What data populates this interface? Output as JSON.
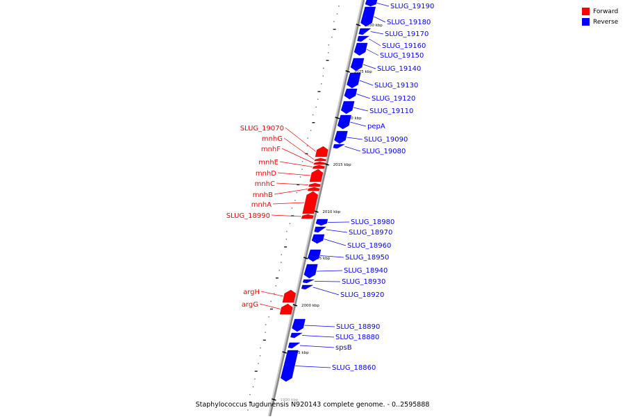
{
  "caption": "Staphylococcus lugdunensis N920143 complete genome. - 0..2595888",
  "legend": [
    {
      "label": "Forward",
      "color": "#ff0000"
    },
    {
      "label": "Reverse",
      "color": "#0000ff"
    }
  ],
  "colors": {
    "forward": "#ff0000",
    "reverse": "#0000ff",
    "backbone": "#888888"
  },
  "ticks": [
    {
      "label": "2030 kbp",
      "kbp": 2030
    },
    {
      "label": "2025 kbp",
      "kbp": 2025
    },
    {
      "label": "2020 kbp",
      "kbp": 2020
    },
    {
      "label": "2015 kbp",
      "kbp": 2015
    },
    {
      "label": "2010 kbp",
      "kbp": 2010
    },
    {
      "label": "2005 kbp",
      "kbp": 2005
    },
    {
      "label": "2000 kbp",
      "kbp": 2000
    },
    {
      "label": "1995 kbp",
      "kbp": 1995
    },
    {
      "label": "1990 kbp",
      "kbp": 1990
    }
  ],
  "forward_genes": [
    {
      "label": "SLUG_19070"
    },
    {
      "label": "mnhG"
    },
    {
      "label": "mnhF"
    },
    {
      "label": "mnhE"
    },
    {
      "label": "mnhD"
    },
    {
      "label": "mnhC"
    },
    {
      "label": "mnhB"
    },
    {
      "label": "mnhA"
    },
    {
      "label": "SLUG_18990"
    },
    {
      "label": "argH"
    },
    {
      "label": "argG"
    }
  ],
  "reverse_genes": [
    {
      "label": "SLUG_19190"
    },
    {
      "label": "SLUG_19180"
    },
    {
      "label": "SLUG_19170"
    },
    {
      "label": "SLUG_19160"
    },
    {
      "label": "SLUG_19150"
    },
    {
      "label": "SLUG_19140"
    },
    {
      "label": "SLUG_19130"
    },
    {
      "label": "SLUG_19120"
    },
    {
      "label": "SLUG_19110"
    },
    {
      "label": "pepA"
    },
    {
      "label": "SLUG_19090"
    },
    {
      "label": "SLUG_19080"
    },
    {
      "label": "SLUG_18980"
    },
    {
      "label": "SLUG_18970"
    },
    {
      "label": "SLUG_18960"
    },
    {
      "label": "SLUG_18950"
    },
    {
      "label": "SLUG_18940"
    },
    {
      "label": "SLUG_18930"
    },
    {
      "label": "SLUG_18920"
    },
    {
      "label": "SLUG_18890"
    },
    {
      "label": "SLUG_18880"
    },
    {
      "label": "spsB"
    },
    {
      "label": "SLUG_18860"
    }
  ]
}
